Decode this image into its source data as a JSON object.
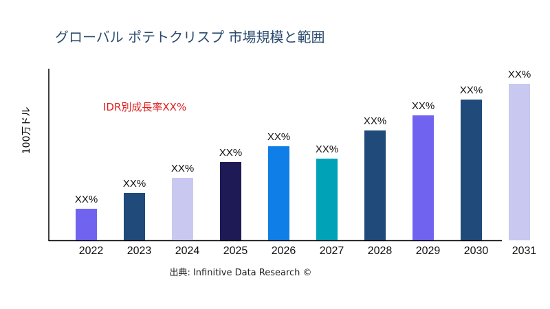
{
  "chart_data": {
    "type": "bar",
    "title": "グローバル ポテトクリスプ 市場規模と範囲",
    "ylabel": "100万ドル",
    "xlabel": "",
    "annotation": "IDR別成長率XX%",
    "source": "出典: Infinitive Data Research ©",
    "categories": [
      "2022",
      "2023",
      "2024",
      "2025",
      "2026",
      "2027",
      "2028",
      "2029",
      "2030",
      "2031"
    ],
    "values": [
      46,
      69,
      91,
      114,
      137,
      119,
      160,
      182,
      205,
      228
    ],
    "data_labels": [
      "XX%",
      "XX%",
      "XX%",
      "XX%",
      "XX%",
      "XX%",
      "XX%",
      "XX%",
      "XX%",
      "XX%"
    ],
    "colors": [
      "#7063f0",
      "#1f4a7a",
      "#c8c8f0",
      "#1e1a56",
      "#0f7ee6",
      "#00a2b8",
      "#1f4a7a",
      "#7063f0",
      "#1f4a7a",
      "#c8c8f0"
    ],
    "grid": false,
    "legend": "none"
  }
}
